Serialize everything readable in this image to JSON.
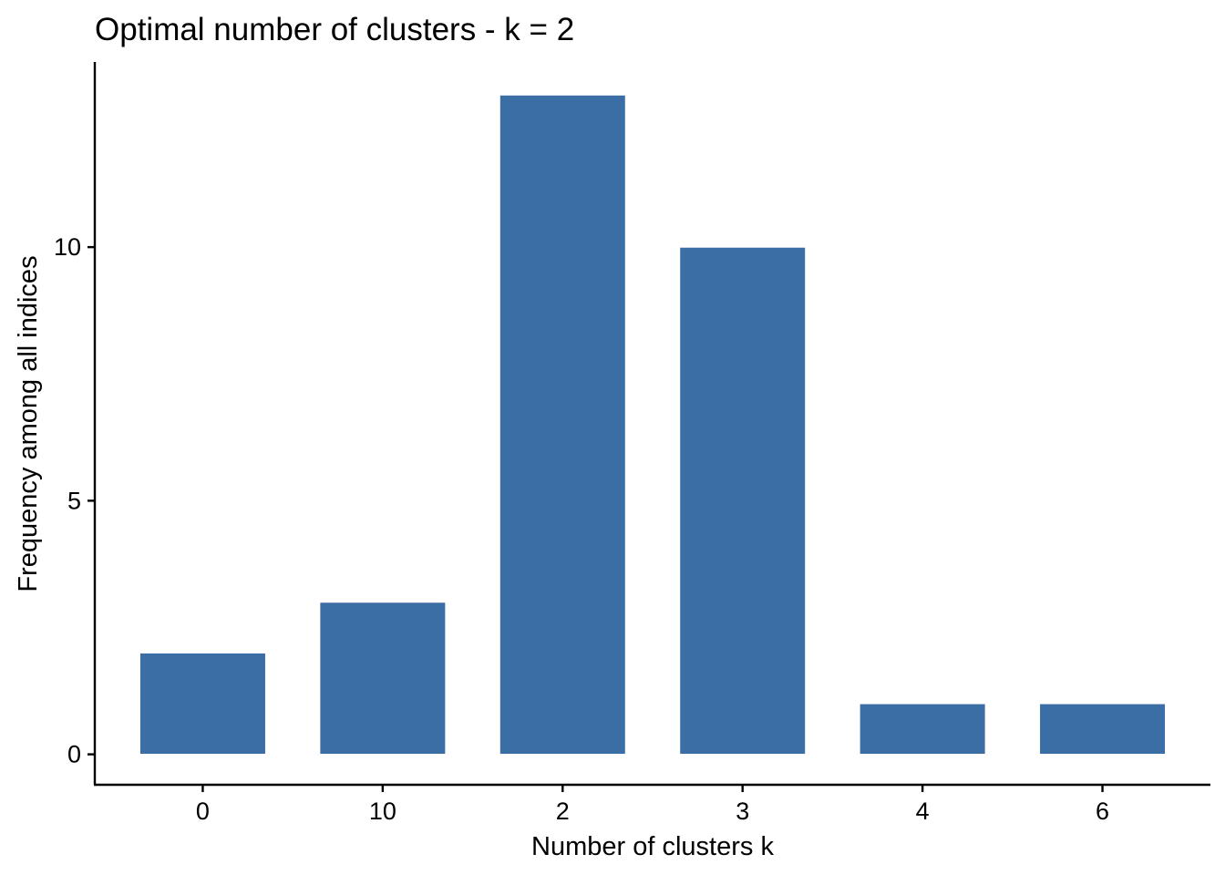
{
  "chart_data": {
    "type": "bar",
    "title": "Optimal number of clusters - k = 2",
    "xlabel": "Number of clusters k",
    "ylabel": "Frequency among all indices",
    "categories": [
      "0",
      "10",
      "2",
      "3",
      "4",
      "6"
    ],
    "values": [
      2,
      3,
      13,
      10,
      1,
      1
    ],
    "yticks": [
      0,
      5,
      10
    ],
    "ylim": [
      -0.6,
      13.65
    ],
    "grid": false,
    "legend": "none",
    "bar_color": "#3A6EA5"
  }
}
